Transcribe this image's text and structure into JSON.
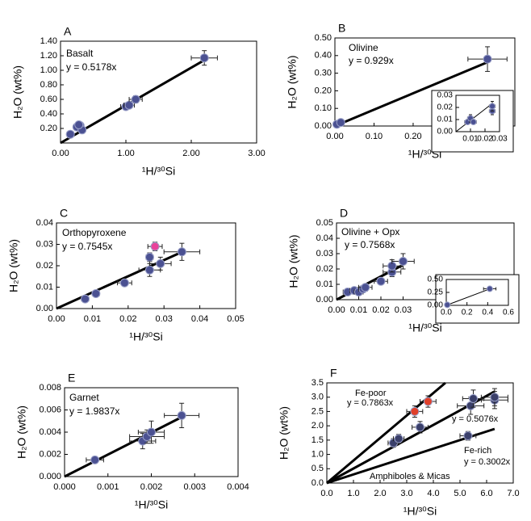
{
  "chart_data": [
    {
      "type": "scatter",
      "panel": "A",
      "xlabel": "¹H/³⁰Si",
      "ylabel": "H₂O (wt%)",
      "annotations": [
        "Basalt",
        "y = 0.5178x"
      ],
      "xlim": [
        0,
        3
      ],
      "ylim": [
        0,
        1.4
      ],
      "xticks": [
        {
          "value": 0,
          "label": "0.00"
        },
        {
          "value": 1,
          "label": "1.00"
        },
        {
          "value": 2,
          "label": "2.00"
        },
        {
          "value": 3,
          "label": "3.00"
        }
      ],
      "yticks": [
        {
          "value": 0.2,
          "label": "0.20"
        },
        {
          "value": 0.4,
          "label": "0.40"
        },
        {
          "value": 0.6,
          "label": "0.60"
        },
        {
          "value": 0.8,
          "label": "0.80"
        },
        {
          "value": 1,
          "label": "1.00"
        },
        {
          "value": 1.2,
          "label": "1.20"
        },
        {
          "value": 1.4,
          "label": "1.40"
        }
      ],
      "series": [
        {
          "color": "#4b5192",
          "x": [
            0.15,
            0.25,
            0.3,
            0.33,
            0.28,
            1.0,
            1.05,
            1.15,
            2.2
          ],
          "y": [
            0.12,
            0.22,
            0.24,
            0.18,
            0.25,
            0.5,
            0.52,
            0.6,
            1.17
          ],
          "xerr": [
            0.05,
            0.05,
            0.05,
            0.05,
            0.05,
            0.08,
            0.08,
            0.1,
            0.2
          ],
          "yerr": [
            0.03,
            0.03,
            0.03,
            0.03,
            0.03,
            0.04,
            0.04,
            0.05,
            0.1
          ]
        }
      ],
      "fits": [
        {
          "slope": 0.5178
        }
      ]
    },
    {
      "type": "scatter",
      "panel": "B",
      "xlabel": "¹H/³⁰Si",
      "ylabel": "H₂O (wt%)",
      "annotations": [
        "Olivine",
        "y = 0.929x"
      ],
      "xlim": [
        0,
        0.46
      ],
      "ylim": [
        0,
        0.5
      ],
      "xticks": [
        {
          "value": 0,
          "label": "0.00"
        },
        {
          "value": 0.1,
          "label": "0.10"
        },
        {
          "value": 0.2,
          "label": "0.20"
        }
      ],
      "yticks": [
        {
          "value": 0,
          "label": "0.00"
        },
        {
          "value": 0.1,
          "label": "0.10"
        },
        {
          "value": 0.2,
          "label": "0.20"
        },
        {
          "value": 0.3,
          "label": "0.30"
        },
        {
          "value": 0.4,
          "label": "0.40"
        },
        {
          "value": 0.5,
          "label": "0.50"
        }
      ],
      "series": [
        {
          "color": "#4b5192",
          "x": [
            0.005,
            0.015,
            0.39
          ],
          "y": [
            0.01,
            0.02,
            0.38
          ],
          "xerr": [
            0.003,
            0.003,
            0.05
          ],
          "yerr": [
            0.005,
            0.005,
            0.07
          ]
        }
      ],
      "fits": [
        {
          "slope": 0.929
        }
      ],
      "inset": {
        "xlim": [
          0,
          0.03
        ],
        "ylim": [
          0,
          0.03
        ],
        "xticks": [
          0.01,
          0.02,
          0.03
        ],
        "yticks": [
          {
            "value": 0,
            "label": "0.00"
          },
          0.01,
          0.02,
          0.03
        ],
        "series": [
          {
            "color": "#4b5192",
            "x": [
              0.008,
              0.01,
              0.012,
              0.025,
              0.025
            ],
            "y": [
              0.008,
              0.011,
              0.008,
              0.017,
              0.021
            ],
            "xerr": [
              0.002,
              0.002,
              0.002,
              0.002,
              0.002
            ],
            "yerr": [
              0.002,
              0.003,
              0.002,
              0.003,
              0.004
            ]
          }
        ],
        "fits": [
          {
            "slope": 0.929
          }
        ]
      }
    },
    {
      "type": "scatter",
      "panel": "C",
      "xlabel": "¹H/³⁰Si",
      "ylabel": "H₂O (wt%)",
      "annotations": [
        "Orthopyroxene",
        "y = 0.7545x"
      ],
      "xlim": [
        0,
        0.05
      ],
      "ylim": [
        0,
        0.04
      ],
      "xticks": [
        {
          "value": 0,
          "label": "0.00"
        },
        0.01,
        0.02,
        0.03,
        0.04,
        0.05
      ],
      "yticks": [
        {
          "value": 0,
          "label": "0.00"
        },
        0.01,
        0.02,
        0.03,
        0.04
      ],
      "series": [
        {
          "color": "#4b5192",
          "x": [
            0.008,
            0.011,
            0.019,
            0.026,
            0.026,
            0.029,
            0.035
          ],
          "y": [
            0.0045,
            0.007,
            0.012,
            0.018,
            0.024,
            0.021,
            0.0265
          ],
          "xerr": [
            0.001,
            0.001,
            0.002,
            0.003,
            0.001,
            0.003,
            0.005
          ],
          "yerr": [
            0.001,
            0.001,
            0.001,
            0.003,
            0.002,
            0.003,
            0.004
          ]
        },
        {
          "color": "#e8439a",
          "x": [
            0.0275
          ],
          "y": [
            0.029
          ],
          "xerr": [
            0.002
          ],
          "yerr": [
            0.002
          ]
        }
      ],
      "fits": [
        {
          "slope": 0.7545
        }
      ]
    },
    {
      "type": "scatter",
      "panel": "D",
      "xlabel": "¹H/³⁰Si",
      "ylabel": "H₂O (wt%)",
      "annotations": [
        "Olivine + Opx",
        "y = 0.7568x"
      ],
      "xlim": [
        0,
        0.08
      ],
      "ylim": [
        0,
        0.05
      ],
      "xticks": [
        {
          "value": 0,
          "label": "0.00"
        },
        0.01,
        0.02,
        0.03
      ],
      "yticks": [
        {
          "value": 0,
          "label": "0.00"
        },
        0.01,
        0.02,
        0.03,
        0.04,
        0.05
      ],
      "series": [
        {
          "color": "#4b5192",
          "x": [
            0.005,
            0.008,
            0.01,
            0.012,
            0.013,
            0.02,
            0.025,
            0.025,
            0.03
          ],
          "y": [
            0.005,
            0.006,
            0.005,
            0.007,
            0.008,
            0.012,
            0.018,
            0.022,
            0.025
          ],
          "xerr": [
            0.002,
            0.002,
            0.002,
            0.002,
            0.003,
            0.003,
            0.004,
            0.004,
            0.005
          ],
          "yerr": [
            0.001,
            0.001,
            0.001,
            0.002,
            0.002,
            0.002,
            0.003,
            0.004,
            0.005
          ]
        }
      ],
      "fits": [
        {
          "slope": 0.7568
        }
      ],
      "inset": {
        "xlim": [
          0,
          0.6
        ],
        "ylim": [
          0,
          0.5
        ],
        "xticks": [
          {
            "value": 0,
            "label": "0.0"
          },
          0.2,
          0.4,
          0.6
        ],
        "yticks": [
          {
            "value": 0,
            "label": "0.00"
          },
          0.25,
          {
            "value": 0.5,
            "label": "0.50"
          }
        ],
        "series": [
          {
            "color": "#4b5192",
            "x": [
              0.01,
              0.42
            ],
            "y": [
              0.01,
              0.32
            ],
            "xerr": [
              0.02,
              0.06
            ],
            "yerr": [
              0.02,
              0.04
            ]
          }
        ],
        "fits": [
          {
            "slope": 0.7568
          }
        ]
      }
    },
    {
      "type": "scatter",
      "panel": "E",
      "xlabel": "¹H/³⁰Si",
      "ylabel": "H₂O (wt%)",
      "annotations": [
        "Garnet",
        "y = 1.9837x"
      ],
      "xlim": [
        0,
        0.004
      ],
      "ylim": [
        0,
        0.008
      ],
      "xticks": [
        {
          "value": 0,
          "label": "0.000"
        },
        0.001,
        0.002,
        0.003,
        0.004
      ],
      "yticks": [
        {
          "value": 0,
          "label": "0.000"
        },
        0.002,
        0.004,
        0.006,
        0.008
      ],
      "series": [
        {
          "color": "#4b5192",
          "x": [
            0.0007,
            0.0018,
            0.0019,
            0.002,
            0.0027
          ],
          "y": [
            0.0015,
            0.0032,
            0.0036,
            0.004,
            0.0055
          ],
          "xerr": [
            0.0002,
            0.0003,
            0.0004,
            0.0003,
            0.0004
          ],
          "yerr": [
            0.0003,
            0.0007,
            0.0006,
            0.001,
            0.0011
          ]
        }
      ],
      "fits": [
        {
          "slope": 1.9837
        }
      ]
    },
    {
      "type": "scatter",
      "panel": "F",
      "xlabel": "¹H/³⁰Si",
      "ylabel": "H₂O (wt%)",
      "annotations": [
        "Fe-poor",
        "y = 0.7863x",
        "y = 0.5076x",
        "Fe-rich",
        "y = 0.3002x",
        "Amphiboles & Micas"
      ],
      "xlim": [
        0,
        7
      ],
      "ylim": [
        0,
        3.5
      ],
      "xticks": [
        {
          "value": 0,
          "label": "0.0"
        },
        {
          "value": 1,
          "label": "1.0"
        },
        {
          "value": 2,
          "label": "2.0"
        },
        {
          "value": 3,
          "label": "3.0"
        },
        {
          "value": 4,
          "label": "4.0"
        },
        {
          "value": 5,
          "label": "5.0"
        },
        {
          "value": 6,
          "label": "6.0"
        },
        {
          "value": 7,
          "label": "7.0"
        }
      ],
      "yticks": [
        {
          "value": 0,
          "label": "0.0"
        },
        0.5,
        {
          "value": 1,
          "label": "1.0"
        },
        1.5,
        {
          "value": 2,
          "label": "2.0"
        },
        2.5,
        {
          "value": 3,
          "label": "3.0"
        },
        3.5
      ],
      "series": [
        {
          "color": "#e0402a",
          "x": [
            3.3,
            3.8
          ],
          "y": [
            2.5,
            2.85
          ],
          "xerr": [
            0.3,
            0.3
          ],
          "yerr": [
            0.2,
            0.2
          ]
        },
        {
          "color": "#3a3f6a",
          "x": [
            2.5,
            2.7,
            3.5,
            5.3,
            5.4,
            5.5,
            6.3,
            6.3
          ],
          "y": [
            1.4,
            1.55,
            1.95,
            1.65,
            2.7,
            2.95,
            2.9,
            3.0
          ],
          "xerr": [
            0.2,
            0.2,
            0.3,
            0.3,
            0.5,
            0.4,
            0.5,
            0.5
          ],
          "yerr": [
            0.15,
            0.15,
            0.2,
            0.15,
            0.3,
            0.3,
            0.3,
            0.3
          ]
        }
      ],
      "fits": [
        {
          "slope": 0.7863
        },
        {
          "slope": 0.5076
        },
        {
          "slope": 0.3002
        }
      ]
    }
  ]
}
